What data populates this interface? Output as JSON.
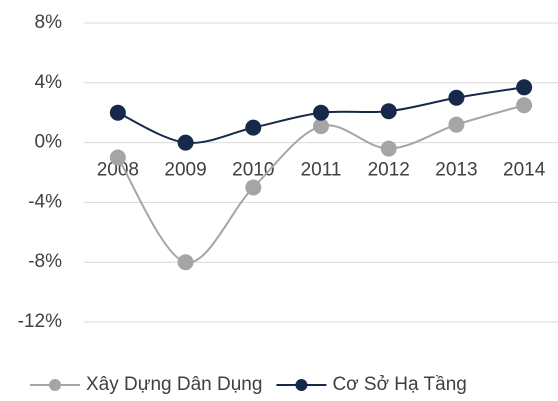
{
  "chart_data": {
    "type": "line",
    "categories": [
      "2008",
      "2009",
      "2010",
      "2011",
      "2012",
      "2013",
      "2014"
    ],
    "series": [
      {
        "name": "Xây Dựng Dân Dụng",
        "color": "#a5a5a5",
        "values": [
          -1,
          -8,
          -3,
          1.1,
          -0.4,
          1.2,
          2.5
        ]
      },
      {
        "name": "Cơ Sở Hạ Tầng",
        "color": "#17294a",
        "values": [
          2.0,
          0,
          1.0,
          2.0,
          2.1,
          3.0,
          3.7
        ]
      }
    ],
    "ylim": [
      -12,
      8
    ],
    "yticks": [
      {
        "value": -12,
        "label": "-12%"
      },
      {
        "value": -8,
        "label": "-8%"
      },
      {
        "value": -4,
        "label": "-4%"
      },
      {
        "value": 0,
        "label": "0%"
      },
      {
        "value": 4,
        "label": "4%"
      },
      {
        "value": 8,
        "label": "8%"
      }
    ],
    "grid": true,
    "legend": "bottom"
  }
}
